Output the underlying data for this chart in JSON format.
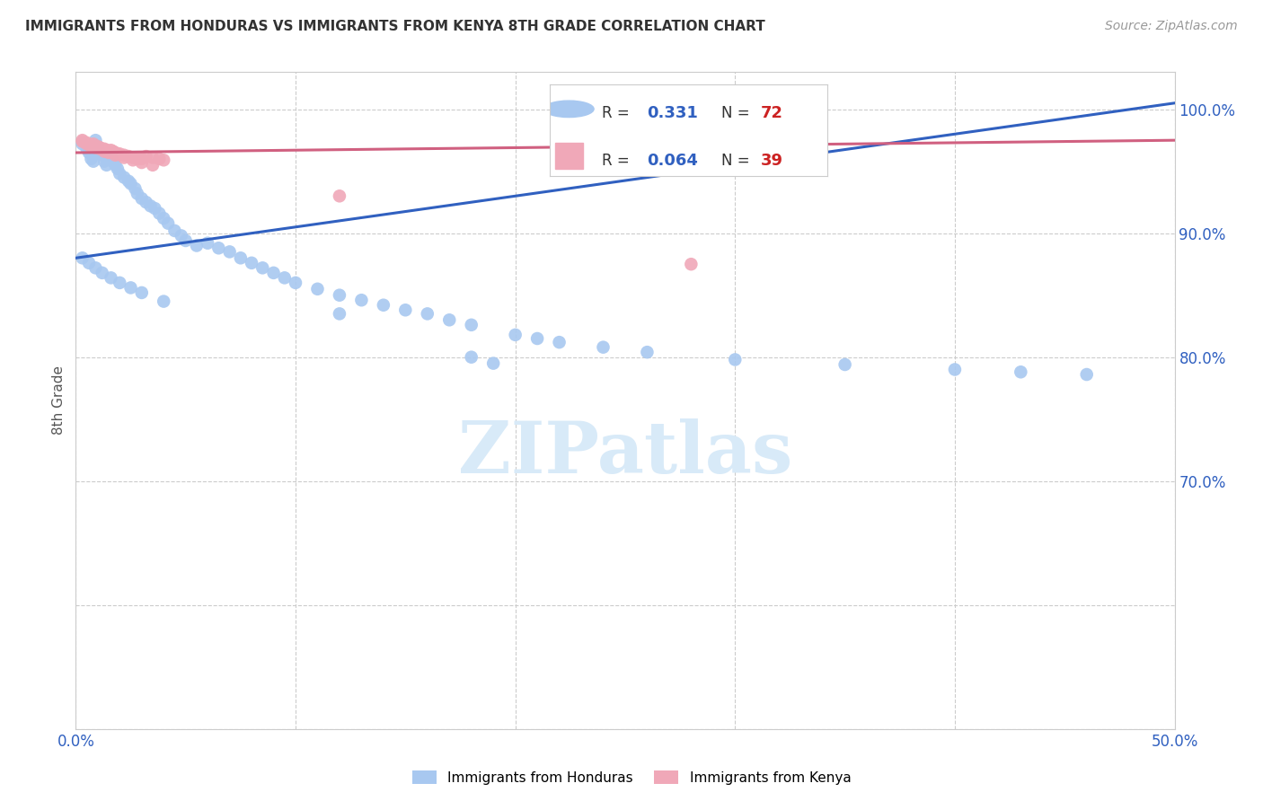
{
  "title": "IMMIGRANTS FROM HONDURAS VS IMMIGRANTS FROM KENYA 8TH GRADE CORRELATION CHART",
  "source": "Source: ZipAtlas.com",
  "ylabel": "8th Grade",
  "x_min": 0.0,
  "x_max": 0.5,
  "y_min": 0.5,
  "y_max": 1.03,
  "x_tick_positions": [
    0.0,
    0.1,
    0.2,
    0.3,
    0.4,
    0.5
  ],
  "x_tick_labels": [
    "0.0%",
    "",
    "",
    "",
    "",
    "50.0%"
  ],
  "y_tick_positions": [
    0.5,
    0.6,
    0.7,
    0.8,
    0.9,
    1.0
  ],
  "y_tick_labels_right": [
    "",
    "",
    "70.0%",
    "80.0%",
    "90.0%",
    "100.0%"
  ],
  "legend_r1": "0.331",
  "legend_n1": "72",
  "legend_r2": "0.064",
  "legend_n2": "39",
  "color_honduras": "#a8c8f0",
  "color_kenya": "#f0a8b8",
  "line_color_honduras": "#3060c0",
  "line_color_kenya": "#d06080",
  "background_color": "#ffffff",
  "watermark": "ZIPatlas",
  "watermark_color": "#d8eaf8",
  "grid_color": "#cccccc",
  "tick_label_color": "#3060c0",
  "title_color": "#333333",
  "source_color": "#999999",
  "ylabel_color": "#555555",
  "honduras_x": [
    0.003,
    0.005,
    0.006,
    0.007,
    0.008,
    0.009,
    0.01,
    0.011,
    0.012,
    0.013,
    0.014,
    0.015,
    0.016,
    0.017,
    0.018,
    0.019,
    0.02,
    0.022,
    0.024,
    0.025,
    0.027,
    0.028,
    0.03,
    0.032,
    0.034,
    0.036,
    0.038,
    0.04,
    0.042,
    0.045,
    0.048,
    0.05,
    0.055,
    0.06,
    0.065,
    0.07,
    0.075,
    0.08,
    0.085,
    0.09,
    0.095,
    0.1,
    0.11,
    0.12,
    0.13,
    0.14,
    0.15,
    0.16,
    0.17,
    0.18,
    0.2,
    0.21,
    0.22,
    0.24,
    0.26,
    0.3,
    0.35,
    0.4,
    0.43,
    0.46,
    0.003,
    0.006,
    0.009,
    0.012,
    0.016,
    0.02,
    0.025,
    0.03,
    0.04,
    0.12,
    0.18,
    0.19
  ],
  "honduras_y": [
    0.972,
    0.968,
    0.965,
    0.96,
    0.958,
    0.975,
    0.97,
    0.965,
    0.963,
    0.958,
    0.955,
    0.96,
    0.962,
    0.958,
    0.955,
    0.952,
    0.948,
    0.945,
    0.942,
    0.94,
    0.936,
    0.932,
    0.928,
    0.925,
    0.922,
    0.92,
    0.916,
    0.912,
    0.908,
    0.902,
    0.898,
    0.894,
    0.89,
    0.892,
    0.888,
    0.885,
    0.88,
    0.876,
    0.872,
    0.868,
    0.864,
    0.86,
    0.855,
    0.85,
    0.846,
    0.842,
    0.838,
    0.835,
    0.83,
    0.826,
    0.818,
    0.815,
    0.812,
    0.808,
    0.804,
    0.798,
    0.794,
    0.79,
    0.788,
    0.786,
    0.88,
    0.876,
    0.872,
    0.868,
    0.864,
    0.86,
    0.856,
    0.852,
    0.845,
    0.835,
    0.8,
    0.795
  ],
  "kenya_x": [
    0.003,
    0.005,
    0.007,
    0.008,
    0.009,
    0.01,
    0.011,
    0.012,
    0.013,
    0.014,
    0.015,
    0.016,
    0.017,
    0.018,
    0.019,
    0.02,
    0.022,
    0.024,
    0.026,
    0.028,
    0.03,
    0.032,
    0.035,
    0.038,
    0.04,
    0.003,
    0.005,
    0.007,
    0.009,
    0.011,
    0.013,
    0.015,
    0.018,
    0.022,
    0.026,
    0.03,
    0.035,
    0.12,
    0.28
  ],
  "kenya_y": [
    0.975,
    0.973,
    0.971,
    0.972,
    0.97,
    0.97,
    0.969,
    0.968,
    0.968,
    0.967,
    0.966,
    0.967,
    0.966,
    0.965,
    0.964,
    0.964,
    0.963,
    0.962,
    0.961,
    0.96,
    0.96,
    0.962,
    0.961,
    0.96,
    0.959,
    0.974,
    0.972,
    0.97,
    0.969,
    0.968,
    0.966,
    0.965,
    0.963,
    0.961,
    0.959,
    0.957,
    0.955,
    0.93,
    0.875
  ],
  "line_h_x0": 0.0,
  "line_h_x1": 0.5,
  "line_h_y0": 0.88,
  "line_h_y1": 1.005,
  "line_k_x0": 0.0,
  "line_k_x1": 0.5,
  "line_k_y0": 0.965,
  "line_k_y1": 0.975
}
